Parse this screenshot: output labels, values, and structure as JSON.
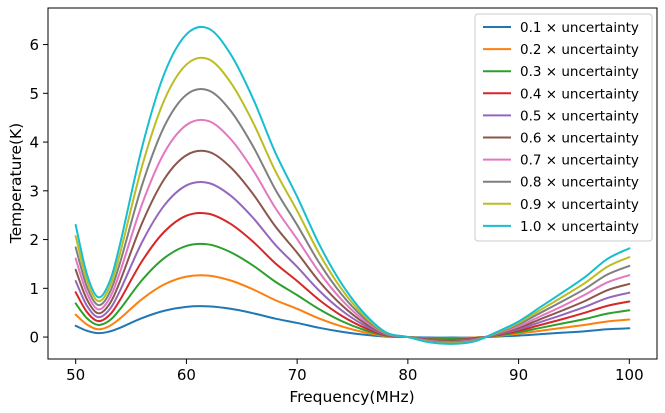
{
  "chart_data": {
    "type": "line",
    "title": "",
    "xlabel": "Frequency(MHz)",
    "ylabel": "Temperature(K)",
    "xlim": [
      47.5,
      102.5
    ],
    "ylim": [
      -0.45,
      6.75
    ],
    "xticks": [
      50,
      60,
      70,
      80,
      90,
      100
    ],
    "yticks": [
      0,
      1,
      2,
      3,
      4,
      5,
      6
    ],
    "legend_position": "top-right",
    "grid": false,
    "x": [
      50,
      51,
      52,
      53,
      54,
      56,
      58,
      60,
      62,
      64,
      66,
      68,
      70,
      72,
      74,
      76,
      78,
      80,
      82,
      84,
      86,
      88,
      90,
      92,
      94,
      96,
      98,
      100
    ],
    "series": [
      {
        "name": "0.1 × uncertainty",
        "color": "#1f77b4",
        "values": [
          0.23,
          0.13,
          0.08,
          0.11,
          0.19,
          0.39,
          0.54,
          0.62,
          0.63,
          0.58,
          0.49,
          0.38,
          0.29,
          0.19,
          0.11,
          0.05,
          0.01,
          0.0,
          -0.01,
          -0.01,
          -0.01,
          0.01,
          0.03,
          0.06,
          0.09,
          0.12,
          0.16,
          0.18
        ]
      },
      {
        "name": "0.2 × uncertainty",
        "color": "#ff7f0e",
        "values": [
          0.46,
          0.26,
          0.16,
          0.22,
          0.38,
          0.78,
          1.08,
          1.24,
          1.26,
          1.16,
          0.98,
          0.76,
          0.58,
          0.38,
          0.22,
          0.1,
          0.02,
          0.0,
          -0.03,
          -0.03,
          -0.01,
          0.02,
          0.07,
          0.13,
          0.19,
          0.25,
          0.32,
          0.36
        ]
      },
      {
        "name": "0.3 × uncertainty",
        "color": "#2ca02c",
        "values": [
          0.69,
          0.39,
          0.25,
          0.33,
          0.57,
          1.17,
          1.62,
          1.87,
          1.9,
          1.74,
          1.47,
          1.14,
          0.86,
          0.57,
          0.33,
          0.15,
          0.03,
          0.0,
          -0.04,
          -0.04,
          -0.02,
          0.03,
          0.1,
          0.19,
          0.28,
          0.37,
          0.48,
          0.55
        ]
      },
      {
        "name": "0.4 × uncertainty",
        "color": "#d62728",
        "values": [
          0.92,
          0.52,
          0.33,
          0.44,
          0.76,
          1.56,
          2.16,
          2.49,
          2.53,
          2.32,
          1.96,
          1.52,
          1.15,
          0.76,
          0.44,
          0.2,
          0.04,
          0.0,
          -0.05,
          -0.06,
          -0.03,
          0.04,
          0.13,
          0.25,
          0.37,
          0.5,
          0.64,
          0.73
        ]
      },
      {
        "name": "0.5 × uncertainty",
        "color": "#9467bd",
        "values": [
          1.15,
          0.65,
          0.41,
          0.55,
          0.95,
          1.95,
          2.7,
          3.11,
          3.16,
          2.9,
          2.45,
          1.9,
          1.44,
          0.95,
          0.55,
          0.25,
          0.05,
          0.0,
          -0.06,
          -0.07,
          -0.04,
          0.05,
          0.16,
          0.31,
          0.46,
          0.62,
          0.8,
          0.91
        ]
      },
      {
        "name": "0.6 × uncertainty",
        "color": "#8c564b",
        "values": [
          1.38,
          0.78,
          0.49,
          0.66,
          1.14,
          2.34,
          3.24,
          3.73,
          3.8,
          3.48,
          2.94,
          2.28,
          1.73,
          1.14,
          0.66,
          0.3,
          0.06,
          0.0,
          -0.07,
          -0.08,
          -0.05,
          0.06,
          0.19,
          0.37,
          0.55,
          0.74,
          0.96,
          1.09
        ]
      },
      {
        "name": "0.7 × uncertainty",
        "color": "#e377c2",
        "values": [
          1.61,
          0.91,
          0.57,
          0.77,
          1.33,
          2.73,
          3.78,
          4.35,
          4.43,
          4.06,
          3.43,
          2.66,
          2.01,
          1.33,
          0.77,
          0.35,
          0.07,
          0.0,
          -0.08,
          -0.1,
          -0.06,
          0.07,
          0.22,
          0.43,
          0.64,
          0.87,
          1.12,
          1.27
        ]
      },
      {
        "name": "0.8 × uncertainty",
        "color": "#7f7f7f",
        "values": [
          1.84,
          1.04,
          0.66,
          0.88,
          1.52,
          3.12,
          4.32,
          4.97,
          5.06,
          4.64,
          3.92,
          3.04,
          2.3,
          1.52,
          0.88,
          0.4,
          0.08,
          0.0,
          -0.09,
          -0.11,
          -0.07,
          0.08,
          0.26,
          0.5,
          0.74,
          0.99,
          1.28,
          1.46
        ]
      },
      {
        "name": "0.9 × uncertainty",
        "color": "#bcbd22",
        "values": [
          2.07,
          1.17,
          0.74,
          0.99,
          1.71,
          3.51,
          4.86,
          5.59,
          5.7,
          5.22,
          4.41,
          3.42,
          2.59,
          1.71,
          0.99,
          0.45,
          0.09,
          0.0,
          -0.1,
          -0.13,
          -0.08,
          0.09,
          0.29,
          0.56,
          0.83,
          1.11,
          1.44,
          1.64
        ]
      },
      {
        "name": "1.0 × uncertainty",
        "color": "#17becf",
        "values": [
          2.3,
          1.3,
          0.82,
          1.1,
          1.9,
          3.9,
          5.4,
          6.21,
          6.33,
          5.8,
          4.9,
          3.8,
          2.88,
          1.9,
          1.1,
          0.5,
          0.1,
          0.0,
          -0.11,
          -0.14,
          -0.09,
          0.1,
          0.32,
          0.62,
          0.92,
          1.23,
          1.6,
          1.82
        ]
      }
    ]
  }
}
